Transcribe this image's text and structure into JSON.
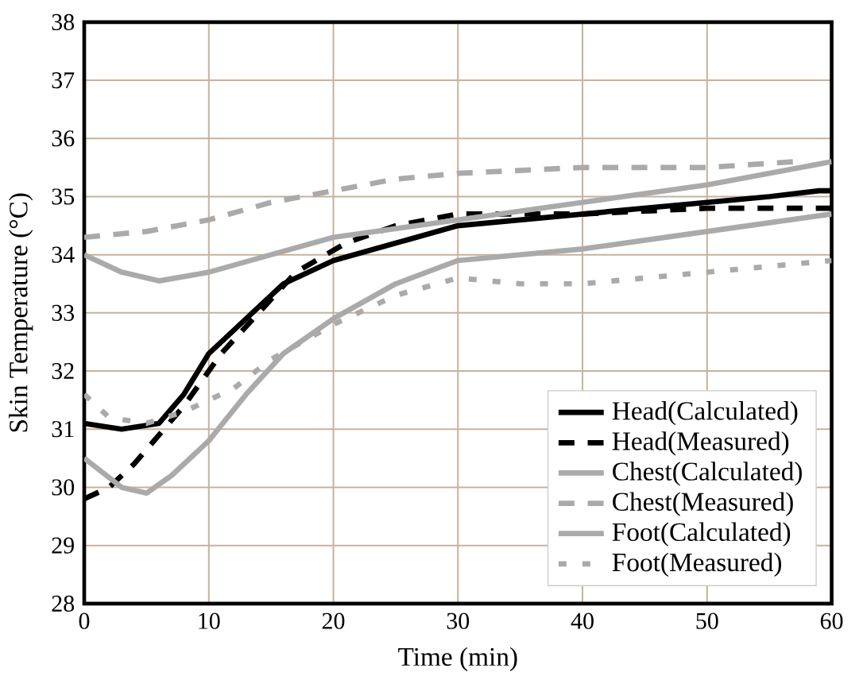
{
  "chart_data": {
    "type": "line",
    "xlabel": "Time (min)",
    "ylabel": "Skin Temperature (°C)",
    "xlim": [
      0,
      60
    ],
    "ylim": [
      28,
      38
    ],
    "xticks": [
      0,
      10,
      20,
      30,
      40,
      50,
      60
    ],
    "yticks": [
      28,
      29,
      30,
      31,
      32,
      33,
      34,
      35,
      36,
      37,
      38
    ],
    "grid": true,
    "legend": "bottom right",
    "marker": "none",
    "series": [
      {
        "name": "Head(Calculated)",
        "color": "#000000",
        "line_style": "solid",
        "x": [
          0,
          3,
          6,
          8,
          10,
          13,
          16,
          20,
          25,
          30,
          40,
          45,
          55,
          59,
          60
        ],
        "values": [
          31.1,
          31.0,
          31.1,
          31.6,
          32.3,
          32.9,
          33.5,
          33.9,
          34.2,
          34.5,
          34.7,
          34.8,
          35.0,
          35.1,
          35.1
        ]
      },
      {
        "name": "Head(Measured)",
        "color": "#000000",
        "line_style": "dashed",
        "x": [
          0,
          2,
          4,
          6,
          8,
          11,
          14,
          17,
          21,
          25,
          30,
          40,
          50,
          55,
          60
        ],
        "values": [
          29.8,
          30.0,
          30.4,
          30.9,
          31.4,
          32.3,
          33.0,
          33.7,
          34.2,
          34.5,
          34.7,
          34.7,
          34.8,
          34.8,
          34.8
        ]
      },
      {
        "name": "Chest(Calculated)",
        "color": "#aaaaaa",
        "line_style": "solid",
        "x": [
          0,
          3,
          6,
          10,
          15,
          20,
          30,
          40,
          50,
          60
        ],
        "values": [
          34.0,
          33.7,
          33.55,
          33.7,
          34.0,
          34.3,
          34.6,
          34.9,
          35.2,
          35.6
        ]
      },
      {
        "name": "Chest(Measured)",
        "color": "#aaaaaa",
        "line_style": "dashed",
        "x": [
          0,
          5,
          10,
          15,
          20,
          25,
          30,
          40,
          50,
          57
        ],
        "values": [
          34.3,
          34.4,
          34.6,
          34.9,
          35.1,
          35.3,
          35.4,
          35.5,
          35.5,
          35.6
        ]
      },
      {
        "name": "Foot(Calculated)",
        "color": "#aaaaaa",
        "line_style": "solid",
        "x": [
          0,
          3,
          5,
          7,
          10,
          13,
          16,
          20,
          25,
          30,
          40,
          50,
          60
        ],
        "values": [
          30.5,
          30.0,
          29.9,
          30.2,
          30.8,
          31.6,
          32.3,
          32.9,
          33.5,
          33.9,
          34.1,
          34.4,
          34.7
        ]
      },
      {
        "name": "Foot(Measured)",
        "color": "#aaaaaa",
        "line_style": "dotted",
        "x": [
          0,
          2,
          5,
          8,
          12,
          15,
          20,
          25,
          30,
          35,
          40,
          45,
          50,
          55,
          60
        ],
        "values": [
          31.6,
          31.2,
          31.1,
          31.3,
          31.7,
          32.2,
          32.8,
          33.3,
          33.6,
          33.5,
          33.5,
          33.6,
          33.7,
          33.8,
          33.9
        ]
      }
    ]
  }
}
